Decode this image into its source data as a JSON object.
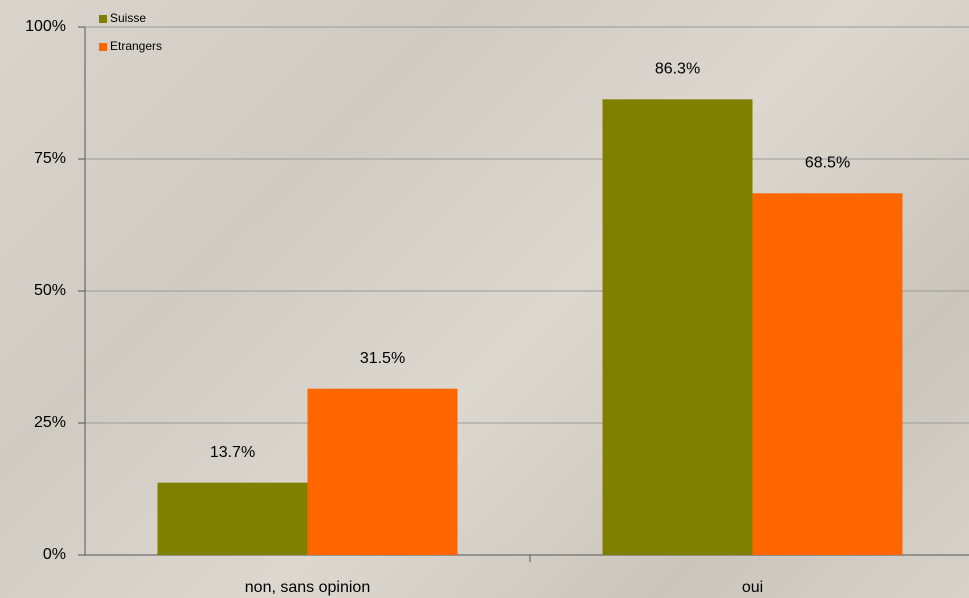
{
  "chart_data": {
    "type": "bar",
    "categories": [
      "non, sans opinion",
      "oui"
    ],
    "series": [
      {
        "name": "Suisse",
        "color": "#808000",
        "values": [
          13.7,
          86.3
        ],
        "value_labels": [
          "13.7%",
          "86.3%"
        ]
      },
      {
        "name": "Etrangers",
        "color": "#ff6600",
        "values": [
          31.5,
          68.5
        ],
        "value_labels": [
          "31.5%",
          "68.5%"
        ]
      }
    ],
    "ylim": [
      0,
      100
    ],
    "yticks": [
      {
        "value": 0,
        "label": "0%"
      },
      {
        "value": 25,
        "label": "25%"
      },
      {
        "value": 50,
        "label": "50%"
      },
      {
        "value": 75,
        "label": "75%"
      },
      {
        "value": 100,
        "label": "100%"
      }
    ],
    "grid": true,
    "legend": "top-left"
  }
}
